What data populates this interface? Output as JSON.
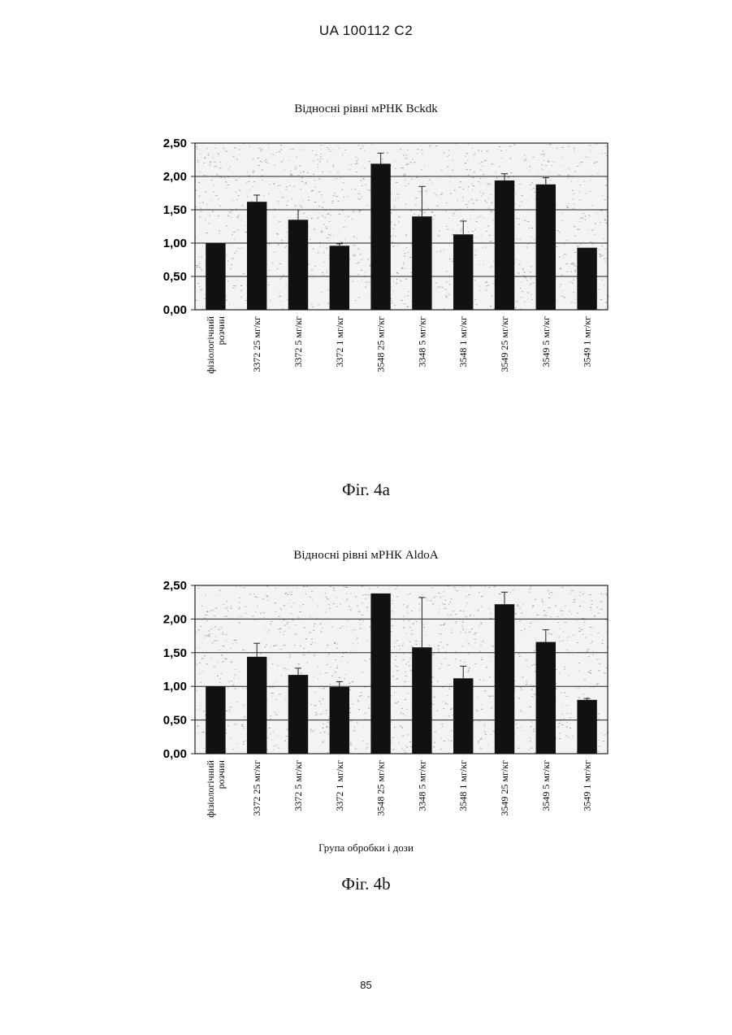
{
  "header": {
    "text": "UA   100112   C2"
  },
  "page_number": "85",
  "figures": [
    {
      "title": "Відносні рівні мРНК Bckdk",
      "caption": "Фіг. 4а",
      "xlabel": ""
    },
    {
      "title": "Відносні рівні мРНК AldoA",
      "caption": "Фіг. 4b",
      "xlabel": "Група обробки і дози"
    }
  ],
  "chart_data": [
    {
      "type": "bar",
      "title": "Відносні рівні мРНК Bckdk",
      "xlabel": "",
      "ylabel": "",
      "ylim": [
        0,
        2.5
      ],
      "yticks": [
        "0,00",
        "0,50",
        "1,00",
        "1,50",
        "2,00",
        "2,50"
      ],
      "grid": true,
      "categories": [
        [
          "фізіологічний",
          "розчин"
        ],
        [
          "3372 25 мг/кг"
        ],
        [
          "3372 5 мг/кг"
        ],
        [
          "3372 1 мг/кг"
        ],
        [
          "3548 25 мг/кг"
        ],
        [
          "3348 5 мг/кг"
        ],
        [
          "3548 1 мг/кг"
        ],
        [
          "3549 25 мг/кг"
        ],
        [
          "3549 5 мг/кг"
        ],
        [
          "3549 1 мг/кг"
        ]
      ],
      "values": [
        1.0,
        1.62,
        1.35,
        0.96,
        2.19,
        1.4,
        1.13,
        1.94,
        1.88,
        0.93
      ],
      "errors": [
        0,
        0.1,
        0.15,
        0.03,
        0.16,
        0.45,
        0.2,
        0.1,
        0.1,
        0
      ],
      "bar_color": "#111111"
    },
    {
      "type": "bar",
      "title": "Відносні рівні мРНК AldoA",
      "xlabel": "Група обробки і дози",
      "ylabel": "",
      "ylim": [
        0,
        2.5
      ],
      "yticks": [
        "0,00",
        "0,50",
        "1,00",
        "1,50",
        "2,00",
        "2,50"
      ],
      "grid": true,
      "categories": [
        [
          "фізіологічний",
          "розчин"
        ],
        [
          "3372 25 мг/кг"
        ],
        [
          "3372 5 мг/кг"
        ],
        [
          "3372 1 мг/кг"
        ],
        [
          "3548 25 мг/кг"
        ],
        [
          "3348 5 мг/кг"
        ],
        [
          "3548 1 мг/кг"
        ],
        [
          "3549 25 мг/кг"
        ],
        [
          "3549 5 мг/кг"
        ],
        [
          "3549 1 мг/кг"
        ]
      ],
      "values": [
        1.0,
        1.44,
        1.17,
        0.99,
        2.38,
        1.58,
        1.12,
        2.22,
        1.66,
        0.8
      ],
      "errors": [
        0,
        0.2,
        0.1,
        0.08,
        0,
        0.74,
        0.18,
        0.18,
        0.18,
        0.02
      ],
      "bar_color": "#111111"
    }
  ]
}
